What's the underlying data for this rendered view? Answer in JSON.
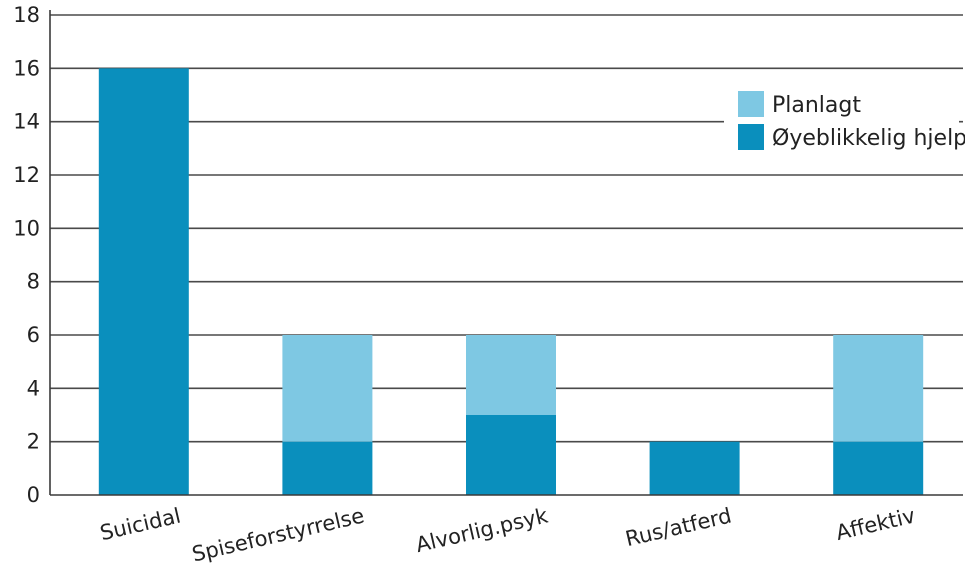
{
  "chart_data": {
    "type": "bar",
    "stacked": true,
    "categories": [
      "Suicidal",
      "Spiseforstyrrelse",
      "Alvorlig.psyk",
      "Rus/atferd",
      "Affektiv"
    ],
    "series": [
      {
        "name": "Øyeblikkelig hjelp",
        "values": [
          16,
          2,
          3,
          2,
          2
        ],
        "color": "#0a8fbd"
      },
      {
        "name": "Planlagt",
        "values": [
          0,
          4,
          3,
          0,
          4
        ],
        "color": "#7ec8e3"
      }
    ],
    "yticks": [
      "0",
      "2",
      "4",
      "6",
      "8",
      "10",
      "12",
      "14",
      "16",
      "18"
    ],
    "ylim": [
      0,
      18
    ],
    "grid": true,
    "legend": {
      "position": "top-right",
      "entries": [
        "Planlagt",
        "Øyeblikkelig hjelp"
      ]
    }
  }
}
